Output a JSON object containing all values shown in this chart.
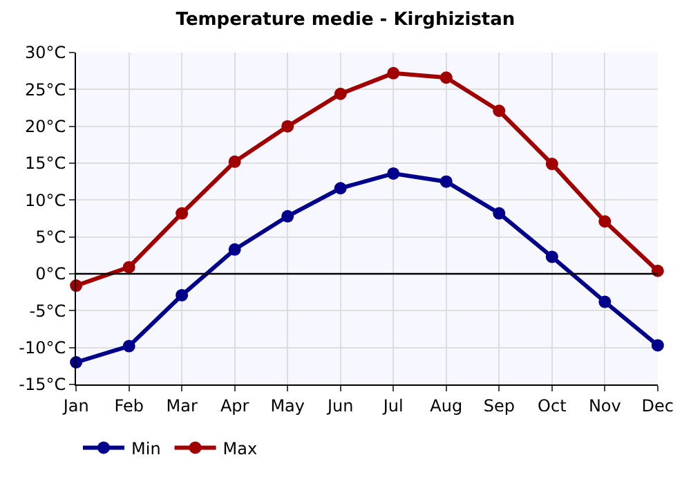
{
  "chart_data": {
    "type": "line",
    "title": "Temperature medie - Kirghizistan",
    "categories": [
      "Jan",
      "Feb",
      "Mar",
      "Apr",
      "May",
      "Jun",
      "Jul",
      "Aug",
      "Sep",
      "Oct",
      "Nov",
      "Dec"
    ],
    "series": [
      {
        "name": "Min",
        "color": "#00008b",
        "values": [
          -12.0,
          -9.8,
          -2.9,
          3.3,
          7.8,
          11.6,
          13.6,
          12.5,
          8.2,
          2.3,
          -3.8,
          -9.7
        ]
      },
      {
        "name": "Max",
        "color": "#a00000",
        "values": [
          -1.6,
          0.9,
          8.2,
          15.2,
          20.0,
          24.4,
          27.2,
          26.6,
          22.1,
          14.9,
          7.1,
          0.4
        ]
      }
    ],
    "ylim": [
      -15,
      30
    ],
    "yticks": [
      {
        "value": -15,
        "label": "-15°C"
      },
      {
        "value": -10,
        "label": "-10°C"
      },
      {
        "value": -5,
        "label": "-5°C"
      },
      {
        "value": 0,
        "label": "0°C"
      },
      {
        "value": 5,
        "label": "5°C"
      },
      {
        "value": 10,
        "label": "10°C"
      },
      {
        "value": 15,
        "label": "15°C"
      },
      {
        "value": 20,
        "label": "20°C"
      },
      {
        "value": 25,
        "label": "25°C"
      },
      {
        "value": 30,
        "label": "30°C"
      }
    ],
    "ref_lines": [
      {
        "axis": "y",
        "value": 0,
        "color": "#000000"
      }
    ],
    "grid": true,
    "legend": "bottom left",
    "marker": "circle",
    "line_style": "solid"
  }
}
